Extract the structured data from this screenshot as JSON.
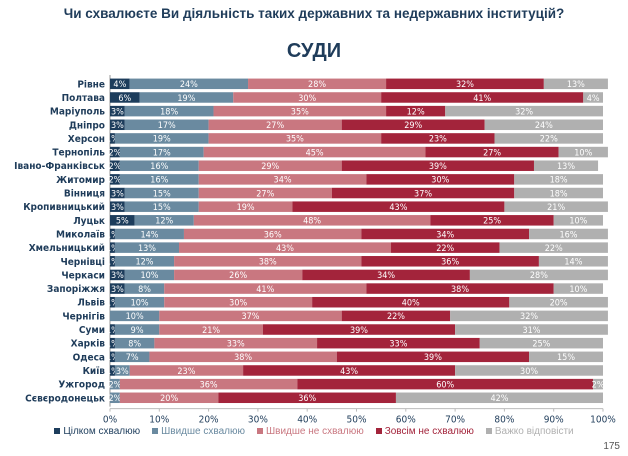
{
  "title": "Чи схвалюєте Ви діяльність таких державних та недержавних інституцій?",
  "page_number": "175",
  "chart_data": {
    "type": "bar",
    "orientation": "horizontal",
    "stacked": true,
    "title": "СУДИ",
    "xlim": [
      0,
      100
    ],
    "x_ticks": [
      "0%",
      "10%",
      "20%",
      "30%",
      "40%",
      "50%",
      "60%",
      "70%",
      "80%",
      "90%",
      "100%"
    ],
    "grid": false,
    "legend": "bottom",
    "categories": [
      "Рівне",
      "Полтава",
      "Маріуполь",
      "Дніпро",
      "Херсон",
      "Тернопіль",
      "Івано-Франківськ",
      "Житомир",
      "Вінниця",
      "Кропивницький",
      "Луцьк",
      "Миколаїв",
      "Хмельницький",
      "Чернівці",
      "Черкаси",
      "Запоріжжя",
      "Львів",
      "Чернігів",
      "Суми",
      "Харків",
      "Одеса",
      "Київ",
      "Ужгород",
      "Сєвєродонецьк"
    ],
    "series": [
      {
        "name": "Цілком схвалюю",
        "color": "#1d3d5c",
        "values": [
          4,
          6,
          3,
          3,
          1,
          2,
          2,
          2,
          3,
          3,
          5,
          1,
          1,
          1,
          3,
          3,
          1,
          0,
          1,
          1,
          1,
          1,
          0,
          0
        ]
      },
      {
        "name": "Швидше схвалюю",
        "color": "#6a8aa0",
        "values": [
          24,
          19,
          18,
          17,
          19,
          17,
          16,
          16,
          15,
          15,
          12,
          14,
          13,
          12,
          10,
          8,
          10,
          10,
          9,
          8,
          7,
          3,
          2,
          2
        ]
      },
      {
        "name": "Швидше не схвалюю",
        "color": "#c97780",
        "values": [
          28,
          30,
          35,
          27,
          35,
          45,
          29,
          34,
          27,
          19,
          48,
          36,
          43,
          38,
          26,
          41,
          30,
          37,
          21,
          33,
          38,
          23,
          36,
          20
        ]
      },
      {
        "name": "Зовсім не схвалюю",
        "color": "#a3243b",
        "values": [
          32,
          41,
          12,
          29,
          23,
          27,
          39,
          30,
          37,
          43,
          25,
          34,
          22,
          36,
          34,
          38,
          40,
          22,
          39,
          33,
          39,
          43,
          60,
          36
        ]
      },
      {
        "name": "Важко відповісти",
        "color": "#b0b0b0",
        "values": [
          13,
          4,
          32,
          24,
          22,
          10,
          13,
          18,
          18,
          21,
          10,
          16,
          22,
          14,
          28,
          10,
          20,
          32,
          31,
          25,
          15,
          30,
          2,
          42
        ]
      }
    ]
  }
}
